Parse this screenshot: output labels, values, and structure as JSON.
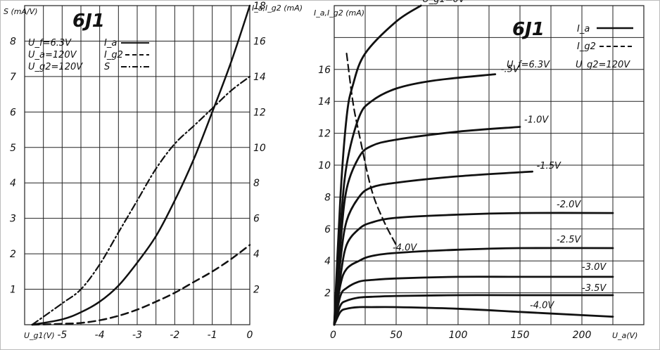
{
  "chart_data": [
    {
      "type": "line",
      "title": "6J1",
      "params": [
        "U_f=6.3V",
        "U_a=120V",
        "U_g2=120V"
      ],
      "xlabel": "U_g1(V)",
      "ylabel_left": "S (mA/V)",
      "ylabel_right": "I_a,I_g2 (mA)",
      "xlim": [
        -6,
        0
      ],
      "ylim_left": [
        0,
        9
      ],
      "ylim_right": [
        0,
        18
      ],
      "x_ticks": [
        "-5",
        "-4",
        "-3",
        "-2",
        "-1",
        "0"
      ],
      "y_left_ticks": [
        "1",
        "2",
        "3",
        "4",
        "5",
        "6",
        "7",
        "8"
      ],
      "y_right_ticks": [
        "2",
        "4",
        "6",
        "8",
        "10",
        "12",
        "14",
        "16",
        "18"
      ],
      "legend": [
        {
          "label": "I_a",
          "style": "solid"
        },
        {
          "label": "I_g2",
          "style": "dashed"
        },
        {
          "label": "S",
          "style": "dash-dot"
        }
      ],
      "series": [
        {
          "name": "I_a",
          "axis": "right",
          "x": [
            -5.8,
            -5,
            -4.5,
            -4,
            -3.5,
            -3,
            -2.5,
            -2,
            -1.5,
            -1,
            -0.5,
            0
          ],
          "y": [
            0,
            0.3,
            0.7,
            1.3,
            2.2,
            3.5,
            5.0,
            7.0,
            9.3,
            12.0,
            14.8,
            18.0
          ]
        },
        {
          "name": "I_g2",
          "axis": "right",
          "x": [
            -5.8,
            -5,
            -4.5,
            -4,
            -3.5,
            -3,
            -2.5,
            -2,
            -1.5,
            -1,
            -0.5,
            0
          ],
          "y": [
            0,
            0.05,
            0.1,
            0.25,
            0.5,
            0.85,
            1.3,
            1.8,
            2.4,
            3.0,
            3.7,
            4.5
          ]
        },
        {
          "name": "S",
          "axis": "left",
          "x": [
            -5.8,
            -5,
            -4.5,
            -4,
            -3.5,
            -3,
            -2.5,
            -2,
            -1.5,
            -1,
            -0.5,
            0
          ],
          "y": [
            0,
            0.6,
            1.0,
            1.7,
            2.6,
            3.5,
            4.4,
            5.1,
            5.6,
            6.1,
            6.6,
            7.0
          ]
        }
      ]
    },
    {
      "type": "line",
      "title": "6J1",
      "params": [
        "U_f=6.3V",
        "U_g2=120V"
      ],
      "xlabel": "U_a(V)",
      "ylabel": "I_a,I_g2 (mA)",
      "xlim": [
        0,
        250
      ],
      "ylim": [
        0,
        20
      ],
      "x_ticks": [
        "0",
        "50",
        "100",
        "150",
        "200"
      ],
      "y_ticks": [
        "2",
        "4",
        "6",
        "8",
        "10",
        "12",
        "14",
        "16"
      ],
      "legend": [
        {
          "label": "I_a",
          "style": "solid"
        },
        {
          "label": "I_g2",
          "style": "dashed"
        }
      ],
      "series": [
        {
          "name": "U_g1=0V",
          "x": [
            0,
            5,
            10,
            15,
            25,
            50,
            70
          ],
          "y": [
            0,
            8,
            13,
            15,
            17,
            19,
            20
          ]
        },
        {
          "name": "-0.5V",
          "x": [
            0,
            5,
            10,
            20,
            30,
            50,
            80,
            130
          ],
          "y": [
            0,
            6,
            10,
            13,
            14,
            14.8,
            15.3,
            15.7
          ]
        },
        {
          "name": "-1.0V",
          "x": [
            0,
            5,
            10,
            20,
            30,
            50,
            100,
            150
          ],
          "y": [
            0,
            5,
            8.5,
            10.5,
            11.2,
            11.6,
            12.1,
            12.4
          ]
        },
        {
          "name": "-1.5V",
          "x": [
            0,
            5,
            10,
            20,
            30,
            50,
            100,
            160
          ],
          "y": [
            0,
            4,
            6.5,
            8.0,
            8.6,
            8.9,
            9.3,
            9.6
          ]
        },
        {
          "name": "-2.0V",
          "x": [
            0,
            5,
            10,
            20,
            30,
            50,
            100,
            150,
            225
          ],
          "y": [
            0,
            3,
            5.0,
            6.0,
            6.4,
            6.7,
            6.9,
            7.0,
            7.0
          ]
        },
        {
          "name": "-2.5V",
          "x": [
            0,
            5,
            10,
            20,
            30,
            50,
            100,
            150,
            225
          ],
          "y": [
            0,
            2.5,
            3.5,
            4.0,
            4.3,
            4.5,
            4.7,
            4.8,
            4.8
          ]
        },
        {
          "name": "-3.0V",
          "x": [
            0,
            5,
            10,
            20,
            30,
            50,
            100,
            150,
            225
          ],
          "y": [
            0,
            1.8,
            2.3,
            2.7,
            2.8,
            2.9,
            3.0,
            3.0,
            3.0
          ]
        },
        {
          "name": "-3.5V",
          "x": [
            0,
            5,
            10,
            20,
            30,
            50,
            100,
            150,
            225
          ],
          "y": [
            0,
            1.2,
            1.5,
            1.7,
            1.75,
            1.8,
            1.85,
            1.85,
            1.85
          ]
        },
        {
          "name": "-4.0V",
          "x": [
            0,
            5,
            10,
            20,
            30,
            50,
            100,
            150,
            200,
            225
          ],
          "y": [
            0,
            0.8,
            1.0,
            1.1,
            1.1,
            1.1,
            1.0,
            0.8,
            0.6,
            0.5
          ]
        },
        {
          "name": "I_g2 U_g1=0V",
          "style": "dashed",
          "x": [
            10,
            15,
            20,
            30,
            40,
            50
          ],
          "y": [
            17,
            14,
            12,
            8.5,
            6.5,
            5
          ]
        }
      ],
      "annotations": [
        "U_g1=0V",
        "-.5V",
        "-1.0V",
        "-1.5V",
        "-2.0V",
        "-2.5V",
        "-3.0V",
        "-3.5V",
        "-4.0V",
        "-4.0V"
      ]
    }
  ]
}
